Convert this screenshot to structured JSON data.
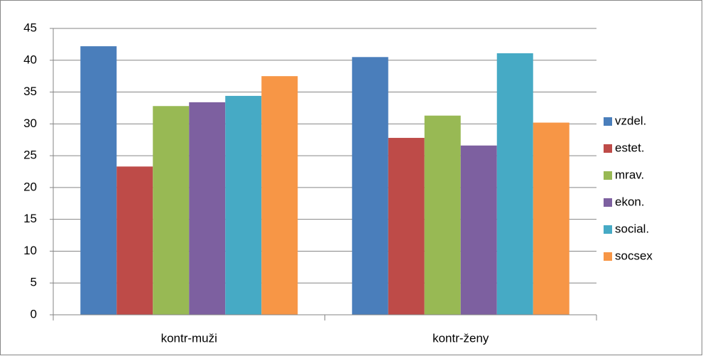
{
  "chart_data": {
    "type": "bar",
    "categories": [
      "kontr-muži",
      "kontr-ženy"
    ],
    "series": [
      {
        "name": "vzdel.",
        "color": "#4a7ebb",
        "values": [
          42.2,
          40.5
        ]
      },
      {
        "name": "estet.",
        "color": "#be4b48",
        "values": [
          23.3,
          27.8
        ]
      },
      {
        "name": "mrav.",
        "color": "#98b954",
        "values": [
          32.8,
          31.3
        ]
      },
      {
        "name": "ekon.",
        "color": "#7d60a0",
        "values": [
          33.4,
          26.6
        ]
      },
      {
        "name": "social.",
        "color": "#46aac5",
        "values": [
          34.4,
          41.1
        ]
      },
      {
        "name": "socsex",
        "color": "#f79646",
        "values": [
          37.5,
          30.2
        ]
      }
    ],
    "ylim": [
      0,
      45
    ],
    "yticks": [
      0,
      5,
      10,
      15,
      20,
      25,
      30,
      35,
      40,
      45
    ],
    "grid": true,
    "legend": "right"
  }
}
